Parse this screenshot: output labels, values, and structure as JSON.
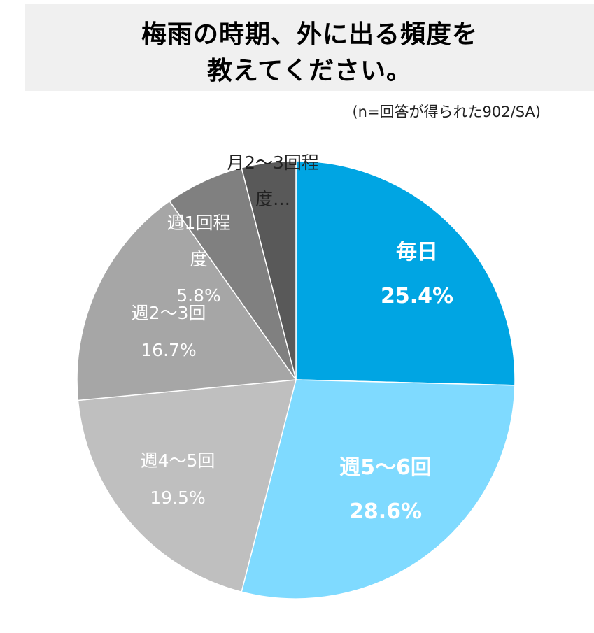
{
  "title": {
    "line1": "梅雨の時期、外に出る頻度を",
    "line2": "教えてください。"
  },
  "note": "(n=回答が得られた902/SA)",
  "chart_data": {
    "type": "pie",
    "categories": [
      "毎日",
      "週5〜6回",
      "週4〜5回",
      "週2〜3回",
      "週1回程度",
      "月2〜3回程度…"
    ],
    "values": [
      25.4,
      28.6,
      19.5,
      16.7,
      5.8,
      4.0
    ],
    "value_labels": [
      "25.4%",
      "28.6%",
      "19.5%",
      "16.7%",
      "5.8%",
      ""
    ],
    "label_lines": [
      [
        "毎日",
        "25.4%"
      ],
      [
        "週5〜6回",
        "28.6%"
      ],
      [
        "週4〜5回",
        "19.5%"
      ],
      [
        "週2〜3回",
        "16.7%"
      ],
      [
        "週1回程",
        "度",
        "5.8%"
      ],
      [
        "月2〜3回程",
        "度…"
      ]
    ],
    "colors": [
      "#00a5e3",
      "#7fdaff",
      "#bfbfbf",
      "#a6a6a6",
      "#808080",
      "#595959"
    ],
    "label_colors": [
      "#ffffff",
      "#ffffff",
      "#ffffff",
      "#ffffff",
      "#ffffff",
      "#222222"
    ],
    "label_bold": [
      true,
      true,
      false,
      false,
      false,
      false
    ],
    "start_angle": "12 o'clock",
    "direction": "clockwise",
    "legend": "none"
  }
}
